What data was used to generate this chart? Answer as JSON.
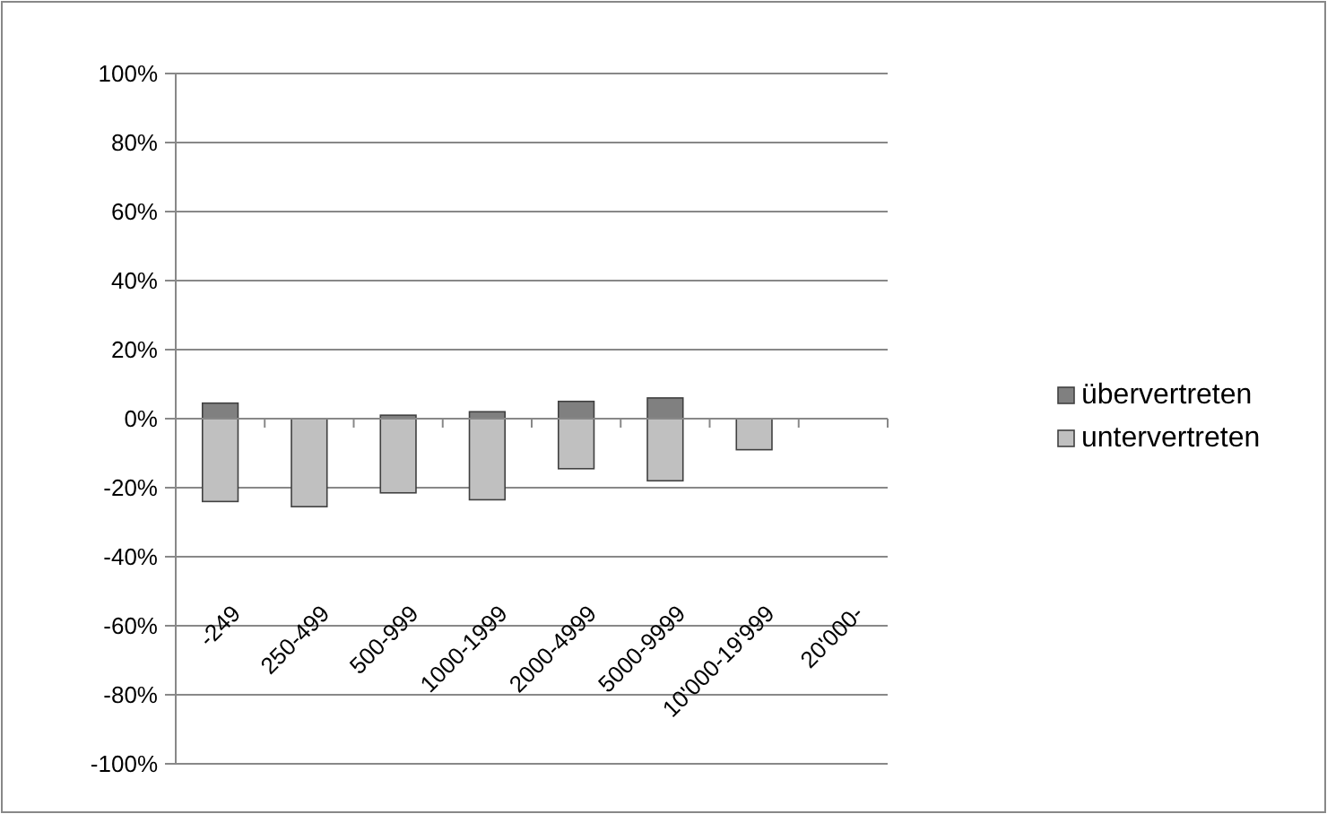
{
  "chart_data": {
    "type": "bar",
    "stacked": true,
    "categories": [
      "-249",
      "250-499",
      "500-999",
      "1000-1999",
      "2000-4999",
      "5000-9999",
      "10'000-19'999",
      "20'000-"
    ],
    "series": [
      {
        "name": "übervertreten",
        "color": "#808080",
        "values": [
          4.5,
          0,
          1,
          2,
          5,
          6,
          0,
          0
        ]
      },
      {
        "name": "untervertreten",
        "color": "#c0c0c0",
        "values": [
          -24,
          -25.5,
          -21.5,
          -23.5,
          -14.5,
          -18,
          -9,
          0
        ]
      }
    ],
    "ylim": [
      -100,
      100
    ],
    "yticks": [
      {
        "value": -100,
        "label": "-100%"
      },
      {
        "value": -80,
        "label": "-80%"
      },
      {
        "value": -60,
        "label": "-60%"
      },
      {
        "value": -40,
        "label": "-40%"
      },
      {
        "value": -20,
        "label": "-20%"
      },
      {
        "value": 0,
        "label": "0%"
      },
      {
        "value": 20,
        "label": "20%"
      },
      {
        "value": 40,
        "label": "40%"
      },
      {
        "value": 60,
        "label": "60%"
      },
      {
        "value": 80,
        "label": "80%"
      },
      {
        "value": 100,
        "label": "100%"
      }
    ],
    "grid": "y",
    "legend": "right"
  }
}
